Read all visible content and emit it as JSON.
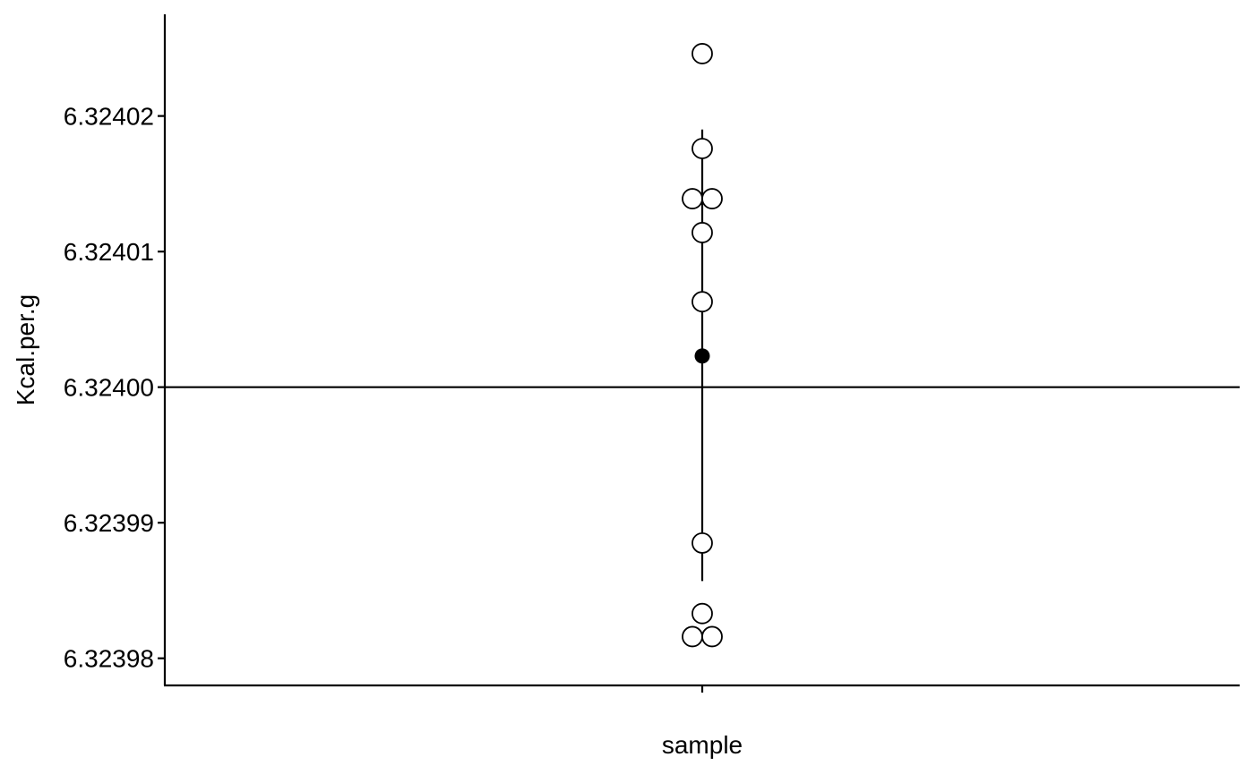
{
  "chart_data": {
    "type": "scatter",
    "xlabel": "sample",
    "ylabel": "Kcal.per.g",
    "categories": [
      "sample"
    ],
    "ylim": [
      6.323978,
      6.3240275
    ],
    "yticks": [
      6.32398,
      6.32399,
      6.324,
      6.32401,
      6.32402
    ],
    "ytick_labels": [
      "6.32398",
      "6.32399",
      "6.32400",
      "6.32401",
      "6.32402"
    ],
    "points": [
      {
        "x": "sample",
        "y": 6.3240246
      },
      {
        "x": "sample",
        "y": 6.3240176
      },
      {
        "x": "sample",
        "y": 6.3240139
      },
      {
        "x": "sample",
        "y": 6.3240139
      },
      {
        "x": "sample",
        "y": 6.3240114
      },
      {
        "x": "sample",
        "y": 6.3240063
      },
      {
        "x": "sample",
        "y": 6.3239885
      },
      {
        "x": "sample",
        "y": 6.3239833
      },
      {
        "x": "sample",
        "y": 6.3239816
      },
      {
        "x": "sample",
        "y": 6.3239816
      }
    ],
    "mean": {
      "x": "sample",
      "y": 6.3240023
    },
    "interval": {
      "x": "sample",
      "low": 6.3239857,
      "high": 6.324019
    },
    "reference_line": {
      "y": 6.324
    },
    "grid": false,
    "colors": {
      "axis": "#000000",
      "point_fill": "#ffffff",
      "point_stroke": "#000000",
      "mean_fill": "#000000"
    }
  }
}
